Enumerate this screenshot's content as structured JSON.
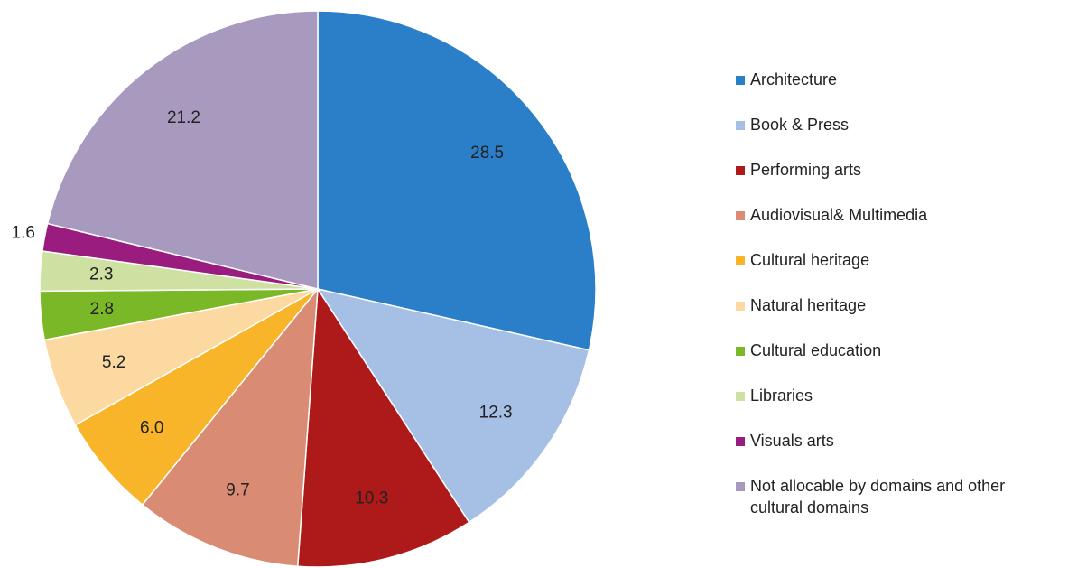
{
  "chart_data": {
    "type": "pie",
    "categories": [
      "Architecture",
      "Book & Press",
      "Performing arts",
      "Audiovisual& Multimedia",
      "Cultural heritage",
      "Natural heritage",
      "Cultural education",
      "Libraries",
      "Visuals arts",
      "Not allocable by domains and other cultural domains"
    ],
    "values": [
      28.5,
      12.3,
      10.3,
      9.7,
      6.0,
      5.2,
      2.8,
      2.3,
      1.6,
      21.2
    ],
    "value_labels": [
      "28.5",
      "12.3",
      "10.3",
      "9.7",
      "6.0",
      "5.2",
      "2.8",
      "2.3",
      "1.6",
      "21.2"
    ],
    "colors": [
      "#2a7fc8",
      "#a6c0e5",
      "#ae1a1a",
      "#d98b74",
      "#f8b52a",
      "#fcd9a0",
      "#7ab827",
      "#cfe1a2",
      "#9a1c7e",
      "#a899bf"
    ],
    "legend": "right"
  }
}
